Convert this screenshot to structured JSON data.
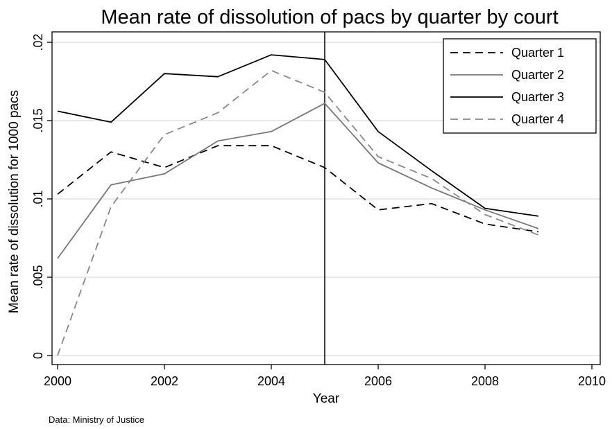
{
  "chart_data": {
    "type": "line",
    "title": "Mean rate of dissolution of pacs by quarter by court",
    "xlabel": "Year",
    "ylabel": "Mean rate of dissolution for 1000 pacs",
    "note": "Data: Ministry of Justice",
    "xlim": [
      2000,
      2010
    ],
    "ylim": [
      0,
      0.02
    ],
    "x_ticks": [
      2000,
      2002,
      2004,
      2006,
      2008,
      2010
    ],
    "x_tick_labels": [
      "2000",
      "2002",
      "2004",
      "2006",
      "2008",
      "2010"
    ],
    "y_ticks": [
      0,
      0.005,
      0.01,
      0.015,
      0.02
    ],
    "y_tick_labels": [
      "0",
      ".005",
      ".01",
      ".015",
      ".02"
    ],
    "grid": "horizontal",
    "legend_position": "top-right",
    "vertical_reference_line": 2005,
    "x": [
      2000,
      2001,
      2002,
      2003,
      2004,
      2005,
      2006,
      2007,
      2008,
      2009
    ],
    "series": [
      {
        "name": "Quarter 1",
        "color": "#000000",
        "dash": "dashed",
        "values": [
          0.0103,
          0.013,
          0.012,
          0.0134,
          0.0134,
          0.012,
          0.0093,
          0.0097,
          0.0084,
          0.0079
        ]
      },
      {
        "name": "Quarter 2",
        "color": "#777777",
        "dash": "solid",
        "values": [
          0.0062,
          0.0109,
          0.0116,
          0.0137,
          0.0143,
          0.0161,
          0.0123,
          0.0107,
          0.0093,
          0.0081
        ]
      },
      {
        "name": "Quarter 3",
        "color": "#000000",
        "dash": "solid",
        "values": [
          0.0156,
          0.0149,
          0.018,
          0.0178,
          0.0192,
          0.0189,
          0.0143,
          0.0118,
          0.0094,
          0.0089
        ]
      },
      {
        "name": "Quarter 4",
        "color": "#888888",
        "dash": "dashed",
        "values": [
          0.0,
          0.0095,
          0.0141,
          0.0155,
          0.0182,
          0.0168,
          0.0127,
          0.0113,
          0.009,
          0.0077
        ]
      }
    ]
  }
}
